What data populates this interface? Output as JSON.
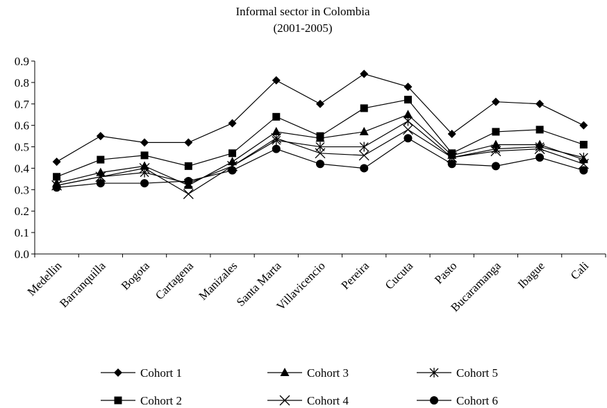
{
  "chart_data": {
    "type": "line",
    "title": "Informal sector in Colombia",
    "subtitle": "(2001-2005)",
    "xlabel": "",
    "ylabel": "",
    "ylim": [
      0,
      0.9
    ],
    "yticks": [
      "0.0",
      "0.1",
      "0.2",
      "0.3",
      "0.4",
      "0.5",
      "0.6",
      "0.7",
      "0.8",
      "0.9"
    ],
    "grid": false,
    "legend_position": "bottom",
    "categories": [
      "Medellin",
      "Barranquilla",
      "Bogota",
      "Cartagena",
      "Manizales",
      "Santa Marta",
      "Villavicencio",
      "Pereira",
      "Cucuta",
      "Pasto",
      "Bucaramanga",
      "Ibague",
      "Cali"
    ],
    "series": [
      {
        "name": "Cohort 1",
        "marker": "diamond",
        "values": [
          0.43,
          0.55,
          0.52,
          0.52,
          0.61,
          0.81,
          0.7,
          0.84,
          0.78,
          0.56,
          0.71,
          0.7,
          0.6
        ]
      },
      {
        "name": "Cohort 2",
        "marker": "square",
        "values": [
          0.36,
          0.44,
          0.46,
          0.41,
          0.47,
          0.64,
          0.55,
          0.68,
          0.72,
          0.47,
          0.57,
          0.58,
          0.51
        ]
      },
      {
        "name": "Cohort 3",
        "marker": "triangle",
        "values": [
          0.33,
          0.38,
          0.41,
          0.32,
          0.43,
          0.57,
          0.54,
          0.57,
          0.65,
          0.46,
          0.51,
          0.51,
          0.44
        ]
      },
      {
        "name": "Cohort 4",
        "marker": "x",
        "values": [
          0.32,
          0.36,
          0.4,
          0.28,
          0.41,
          0.54,
          0.47,
          0.46,
          0.58,
          0.45,
          0.48,
          0.49,
          0.42
        ]
      },
      {
        "name": "Cohort 5",
        "marker": "star",
        "values": [
          0.32,
          0.36,
          0.38,
          0.33,
          0.41,
          0.53,
          0.5,
          0.5,
          0.62,
          0.45,
          0.49,
          0.5,
          0.45
        ]
      },
      {
        "name": "Cohort 6",
        "marker": "circle",
        "values": [
          0.31,
          0.33,
          0.33,
          0.34,
          0.39,
          0.49,
          0.42,
          0.4,
          0.54,
          0.42,
          0.41,
          0.45,
          0.39
        ]
      }
    ],
    "legend_order": [
      "Cohort 1",
      "Cohort 3",
      "Cohort 5",
      "Cohort 2",
      "Cohort 4",
      "Cohort 6"
    ]
  }
}
